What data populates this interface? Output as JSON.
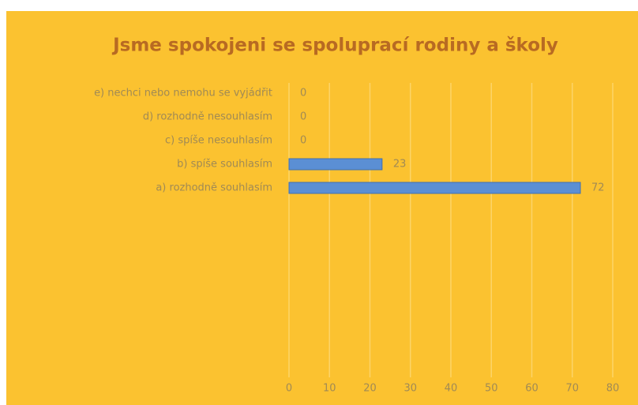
{
  "chart_data": {
    "type": "bar",
    "orientation": "horizontal",
    "title": "Jsme spokojeni se spoluprací rodiny a školy",
    "categories": [
      "e) nechci nebo nemohu se vyjádřit",
      "d) rozhodně nesouhlasím",
      "c) spíše nesouhlasím",
      "b) spíše souhlasím",
      "a) rozhodně souhlasím"
    ],
    "values": [
      0,
      0,
      0,
      23,
      72
    ],
    "color": "#5b8fd4",
    "xlim": [
      0,
      80
    ],
    "xticks": [
      0,
      10,
      20,
      30,
      40,
      50,
      60,
      70,
      80
    ],
    "grid": true
  }
}
